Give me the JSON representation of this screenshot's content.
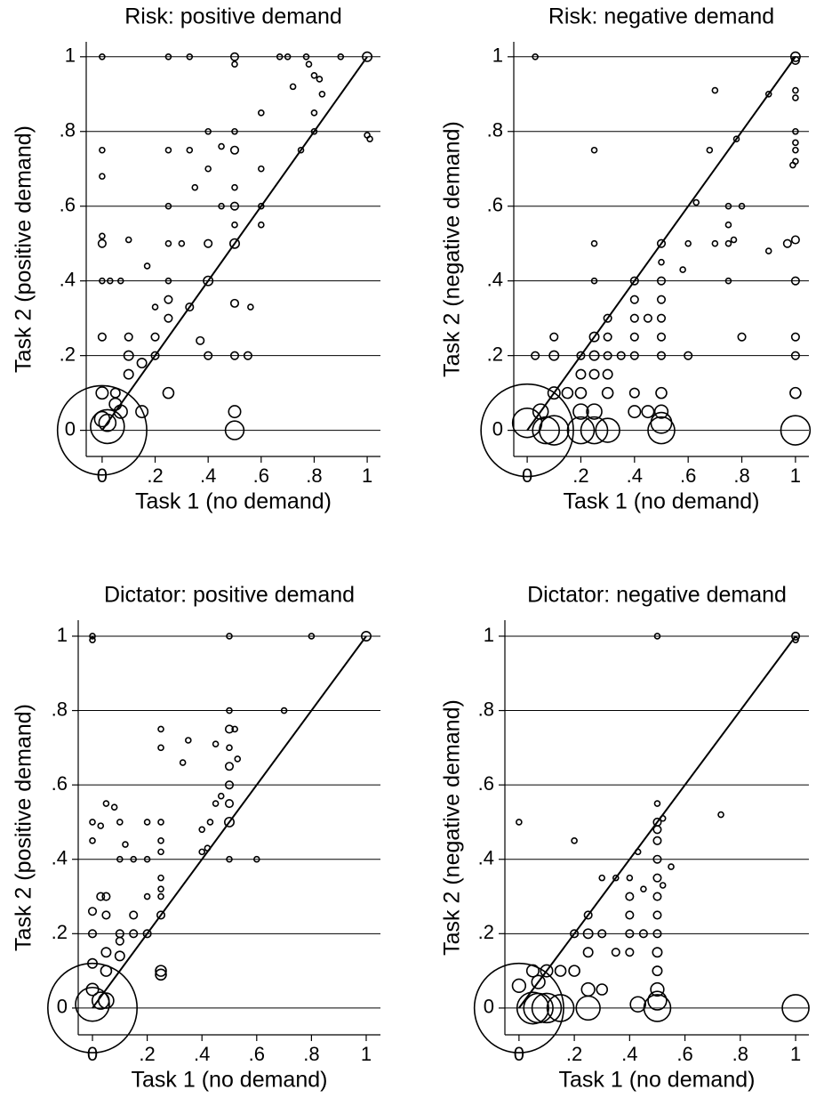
{
  "chart_data": [
    {
      "type": "scatter",
      "title": "Risk: positive demand",
      "x_label": "Task 1 (no demand)",
      "y_label": "Task 2 (positive demand)",
      "x": [
        0,
        0,
        0,
        0,
        0,
        0,
        0.03,
        0.07,
        0,
        0.1,
        0.1,
        0.1,
        0.1,
        0.15,
        0.17,
        0.2,
        0.2,
        0.2,
        0.25,
        0.25,
        0.25,
        0.25,
        0.25,
        0.25,
        0.25,
        0.3,
        0.33,
        0.33,
        0.33,
        0.35,
        0.37,
        0.4,
        0.4,
        0.4,
        0.4,
        0.4,
        0.45,
        0.45,
        0.5,
        0.5,
        0.5,
        0.5,
        0.5,
        0.5,
        0.5,
        0.5,
        0.5,
        0.5,
        0.5,
        0.5,
        0.55,
        0.56,
        0.6,
        0.6,
        0.6,
        0.6,
        0.67,
        0.7,
        0.72,
        0.75,
        0.77,
        0.78,
        0.8,
        0.8,
        0.8,
        0.82,
        0.83,
        0.9,
        1,
        1,
        1.01,
        0,
        0.05,
        0.07,
        0.15,
        0.25,
        0,
        0.02,
        0.05,
        0,
        0.02
      ],
      "values": [
        1,
        0.75,
        0.68,
        0.52,
        0.5,
        0.4,
        0.4,
        0.4,
        0.25,
        0.51,
        0.25,
        0.2,
        0.15,
        0.18,
        0.44,
        0.33,
        0.25,
        0.2,
        1,
        0.75,
        0.6,
        0.5,
        0.4,
        0.35,
        0.3,
        0.5,
        1,
        0.33,
        0.75,
        0.65,
        0.24,
        0.8,
        0.7,
        0.5,
        0.4,
        0.2,
        0.76,
        0.6,
        1,
        0.98,
        0.8,
        0.75,
        0.65,
        0.6,
        0.55,
        0.5,
        0.34,
        0.2,
        0.05,
        0,
        0.2,
        0.33,
        0.85,
        0.7,
        0.6,
        0.55,
        1,
        1,
        0.92,
        0.75,
        1,
        0.98,
        0.85,
        0.8,
        0.95,
        0.94,
        0.9,
        1,
        1,
        0.79,
        0.78,
        0.1,
        0.1,
        0.05,
        0.05,
        0.1,
        0.03,
        0.02,
        0.07,
        0,
        0.01
      ],
      "sizes": [
        1,
        1,
        1,
        1,
        2,
        1,
        1,
        1,
        2,
        1,
        2,
        3,
        3,
        3,
        1,
        1,
        2,
        2,
        1,
        1,
        1,
        1,
        1,
        2,
        2,
        1,
        1,
        2,
        1,
        1,
        2,
        1,
        1,
        2,
        3,
        2,
        1,
        1,
        2,
        1,
        1,
        2,
        1,
        2,
        1,
        3,
        2,
        2,
        5,
        12,
        2,
        1,
        1,
        1,
        1,
        1,
        1,
        1,
        1,
        1,
        1,
        1,
        1,
        1,
        1,
        1,
        1,
        1,
        3,
        1,
        1,
        5,
        3,
        6,
        5,
        4,
        8,
        10,
        5,
        280,
        40
      ],
      "xlim": [
        -0.06,
        1.05
      ],
      "ylim": [
        -0.07,
        1.04
      ],
      "xticks": [
        0,
        {
          "value": 0.2,
          "label": ".2"
        },
        {
          "value": 0.4,
          "label": ".4"
        },
        {
          "value": 0.6,
          "label": ".6"
        },
        {
          "value": 0.8,
          "label": ".8"
        },
        1
      ],
      "yticks": [
        0,
        {
          "value": 0.2,
          "label": ".2"
        },
        {
          "value": 0.4,
          "label": ".4"
        },
        {
          "value": 0.6,
          "label": ".6"
        },
        {
          "value": 0.8,
          "label": ".8"
        },
        1
      ],
      "grid": true,
      "diagonal": true,
      "color": "#000000"
    },
    {
      "type": "scatter",
      "title": "Risk: negative demand",
      "x_label": "Task 1 (no demand)",
      "y_label": "Task 2 (negative demand)",
      "x": [
        0.03,
        0.7,
        0.9,
        1,
        1,
        1,
        1,
        1,
        1,
        1,
        1,
        0.99,
        0.78,
        0.68,
        0.25,
        0.63,
        0.75,
        0.8,
        0.75,
        0.77,
        0.75,
        0.7,
        0.6,
        0.5,
        0.58,
        0.75,
        0.8,
        0.9,
        0.97,
        1,
        1,
        1,
        1,
        1,
        1,
        0.25,
        0.25,
        0.4,
        0.5,
        0.5,
        0.5,
        0.5,
        0.5,
        0.45,
        0.4,
        0.4,
        0.4,
        0.4,
        0.4,
        0.3,
        0.3,
        0.3,
        0.25,
        0.25,
        0.25,
        0.35,
        0.5,
        0.6,
        0.5,
        0.5,
        0.5,
        0.5,
        0.45,
        0.4,
        0.2,
        0.2,
        0.2,
        0.15,
        0.1,
        0.1,
        0.1,
        0.05,
        0.03,
        0.25,
        0.2,
        0.2,
        0.25,
        0.3,
        0.1,
        0.07,
        0,
        0,
        0.3,
        0.3
      ],
      "values": [
        1,
        0.91,
        0.9,
        1,
        0.99,
        0.91,
        0.89,
        0.8,
        0.77,
        0.75,
        0.72,
        0.71,
        0.78,
        0.75,
        0.75,
        0.61,
        0.6,
        0.6,
        0.55,
        0.51,
        0.5,
        0.5,
        0.5,
        0.5,
        0.43,
        0.4,
        0.25,
        0.48,
        0.5,
        0.51,
        0.4,
        0.25,
        0.2,
        0.1,
        0,
        0.5,
        0.4,
        0.4,
        0.45,
        0.4,
        0.35,
        0.3,
        0.25,
        0.3,
        0.35,
        0.3,
        0.25,
        0.2,
        0.1,
        0.3,
        0.25,
        0.2,
        0.25,
        0.2,
        0.15,
        0.2,
        0.2,
        0.2,
        0.1,
        0.05,
        0.02,
        0,
        0.05,
        0.05,
        0.2,
        0.15,
        0.1,
        0.1,
        0.25,
        0.2,
        0.1,
        0.05,
        0.2,
        0.05,
        0.05,
        0,
        0,
        0,
        0,
        0,
        0.02,
        0,
        0.1,
        0.15
      ],
      "sizes": [
        1,
        1,
        1,
        3,
        2,
        1,
        1,
        1,
        1,
        1,
        1,
        1,
        1,
        1,
        1,
        1,
        1,
        1,
        1,
        1,
        1,
        1,
        1,
        2,
        1,
        1,
        2,
        1,
        2,
        2,
        2,
        2,
        2,
        4,
        30,
        1,
        1,
        2,
        1,
        2,
        2,
        2,
        2,
        2,
        2,
        2,
        2,
        2,
        3,
        2,
        2,
        2,
        3,
        3,
        3,
        2,
        2,
        2,
        4,
        6,
        15,
        25,
        5,
        5,
        2,
        3,
        4,
        4,
        2,
        3,
        5,
        8,
        2,
        8,
        8,
        25,
        25,
        20,
        30,
        25,
        30,
        300,
        4,
        3
      ],
      "xlim": [
        -0.05,
        1.05
      ],
      "ylim": [
        -0.07,
        1.04
      ],
      "xticks": [
        0,
        {
          "value": 0.2,
          "label": ".2"
        },
        {
          "value": 0.4,
          "label": ".4"
        },
        {
          "value": 0.6,
          "label": ".6"
        },
        {
          "value": 0.8,
          "label": ".8"
        },
        1
      ],
      "yticks": [
        0,
        {
          "value": 0.2,
          "label": ".2"
        },
        {
          "value": 0.4,
          "label": ".4"
        },
        {
          "value": 0.6,
          "label": ".6"
        },
        {
          "value": 0.8,
          "label": ".8"
        },
        1
      ],
      "grid": true,
      "diagonal": true,
      "color": "#000000"
    },
    {
      "type": "scatter",
      "title": "Dictator: positive demand",
      "x_label": "Task 1 (no demand)",
      "y_label": "Task 2 (positive demand)",
      "x": [
        0,
        0,
        0.5,
        0.8,
        1,
        0.7,
        0.5,
        0.5,
        0.5,
        0.5,
        0.5,
        0.5,
        0.5,
        0.5,
        0.52,
        0.53,
        0.47,
        0.45,
        0.45,
        0.43,
        0.4,
        0.4,
        0.42,
        0.6,
        0.25,
        0.25,
        0.33,
        0.35,
        0.25,
        0.25,
        0.25,
        0.25,
        0.25,
        0.25,
        0.25,
        0.25,
        0.25,
        0.2,
        0.2,
        0.2,
        0.2,
        0.15,
        0.15,
        0.15,
        0.12,
        0.1,
        0.1,
        0.1,
        0.1,
        0.1,
        0.08,
        0.05,
        0.05,
        0.05,
        0.05,
        0.05,
        0.03,
        0,
        0,
        0,
        0,
        0,
        0,
        0.03,
        0.03,
        0.05,
        0,
        0
      ],
      "values": [
        1,
        0.99,
        1,
        1,
        1,
        0.8,
        0.8,
        0.75,
        0.7,
        0.65,
        0.6,
        0.55,
        0.5,
        0.4,
        0.75,
        0.67,
        0.57,
        0.55,
        0.71,
        0.5,
        0.48,
        0.42,
        0.43,
        0.4,
        0.75,
        0.7,
        0.66,
        0.72,
        0.5,
        0.45,
        0.42,
        0.35,
        0.32,
        0.3,
        0.25,
        0.1,
        0.09,
        0.5,
        0.4,
        0.3,
        0.2,
        0.4,
        0.25,
        0.2,
        0.44,
        0.5,
        0.4,
        0.2,
        0.14,
        0.18,
        0.54,
        0.55,
        0.3,
        0.25,
        0.15,
        0.1,
        0.49,
        0.5,
        0.45,
        0.26,
        0.2,
        0.12,
        0.05,
        0.3,
        0.02,
        0.02,
        0,
        0.01
      ],
      "sizes": [
        1,
        1,
        1,
        1,
        3,
        1,
        1,
        2,
        1,
        2,
        2,
        2,
        3,
        1,
        1,
        1,
        1,
        1,
        1,
        1,
        1,
        1,
        1,
        1,
        1,
        1,
        1,
        1,
        1,
        1,
        1,
        1,
        1,
        1,
        2,
        4,
        4,
        1,
        1,
        1,
        2,
        1,
        2,
        2,
        1,
        1,
        1,
        2,
        3,
        2,
        1,
        1,
        2,
        2,
        3,
        4,
        1,
        1,
        1,
        2,
        2,
        3,
        5,
        2,
        10,
        8,
        280,
        40
      ],
      "xlim": [
        -0.052,
        1.052
      ],
      "ylim": [
        -0.072,
        1.043
      ],
      "xticks": [
        0,
        {
          "value": 0.2,
          "label": ".2"
        },
        {
          "value": 0.4,
          "label": ".4"
        },
        {
          "value": 0.6,
          "label": ".6"
        },
        {
          "value": 0.8,
          "label": ".8"
        },
        1
      ],
      "yticks": [
        0,
        {
          "value": 0.2,
          "label": ".2"
        },
        {
          "value": 0.4,
          "label": ".4"
        },
        {
          "value": 0.6,
          "label": ".6"
        },
        {
          "value": 0.8,
          "label": ".8"
        },
        1
      ],
      "grid": true,
      "diagonal": true,
      "color": "#000000"
    },
    {
      "type": "scatter",
      "title": "Dictator: negative demand",
      "x_label": "Task 1 (no demand)",
      "y_label": "Task 2 (negative demand)",
      "x": [
        0.5,
        1,
        1,
        0,
        0.2,
        0.73,
        0.5,
        0.5,
        0.5,
        0.52,
        0.5,
        0.5,
        0.5,
        0.5,
        0.5,
        0.5,
        0.5,
        0.5,
        0.5,
        0.5,
        0.5,
        0.55,
        0.52,
        0.43,
        0.4,
        0.4,
        0.4,
        0.4,
        0.4,
        0.45,
        0.45,
        0.35,
        0.35,
        0.3,
        0.3,
        0.3,
        0.25,
        0.25,
        0.25,
        0.25,
        0.25,
        0.2,
        0.2,
        0.15,
        0.1,
        0.07,
        0.05,
        0.15,
        0.1,
        0.07,
        0.05,
        0,
        0,
        1,
        0.43
      ],
      "values": [
        1,
        1,
        0.99,
        0.5,
        0.45,
        0.52,
        0.55,
        0.5,
        0.48,
        0.51,
        0.45,
        0.4,
        0.35,
        0.3,
        0.25,
        0.2,
        0.15,
        0.1,
        0.05,
        0.02,
        0,
        0.38,
        0.33,
        0.42,
        0.35,
        0.3,
        0.25,
        0.2,
        0.15,
        0.32,
        0.2,
        0.35,
        0.15,
        0.35,
        0.2,
        0.05,
        0.25,
        0.2,
        0.15,
        0.05,
        0,
        0.2,
        0.1,
        0.1,
        0.1,
        0.07,
        0.1,
        0,
        0,
        0,
        0,
        0.06,
        0,
        0,
        0.01
      ],
      "sizes": [
        1,
        2,
        1,
        1,
        1,
        1,
        1,
        2,
        2,
        1,
        2,
        2,
        2,
        2,
        2,
        2,
        3,
        3,
        6,
        12,
        25,
        1,
        1,
        1,
        1,
        2,
        2,
        2,
        2,
        1,
        2,
        1,
        2,
        1,
        2,
        4,
        2,
        3,
        3,
        6,
        20,
        2,
        4,
        4,
        5,
        6,
        5,
        25,
        30,
        30,
        35,
        6,
        280,
        25,
        8
      ],
      "xlim": [
        -0.051,
        1.048
      ],
      "ylim": [
        -0.072,
        1.043
      ],
      "xticks": [
        0,
        {
          "value": 0.2,
          "label": ".2"
        },
        {
          "value": 0.4,
          "label": ".4"
        },
        {
          "value": 0.6,
          "label": ".6"
        },
        {
          "value": 0.8,
          "label": ".8"
        },
        1
      ],
      "yticks": [
        0,
        {
          "value": 0.2,
          "label": ".2"
        },
        {
          "value": 0.4,
          "label": ".4"
        },
        {
          "value": 0.6,
          "label": ".6"
        },
        {
          "value": 0.8,
          "label": ".8"
        },
        1
      ],
      "grid": true,
      "diagonal": true,
      "color": "#000000"
    }
  ]
}
